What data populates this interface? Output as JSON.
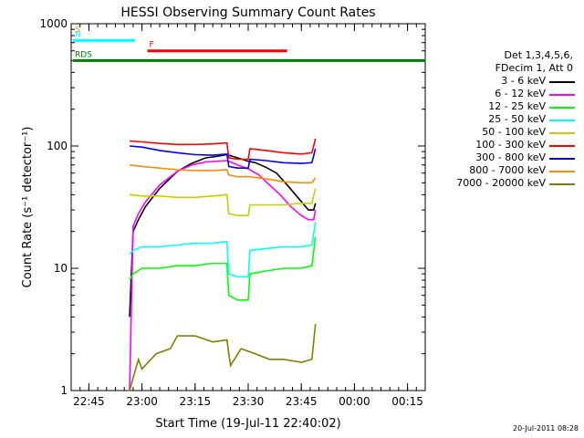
{
  "chart_data": {
    "type": "line",
    "title": "HESSI Observing Summary Count Rates",
    "xlabel": "Start Time (19-Jul-11 22:40:02)",
    "ylabel": "Count Rate (s⁻¹ detector⁻¹)",
    "yscale": "log",
    "ylim": [
      1,
      1000
    ],
    "xlim_min": [
      0,
      100
    ],
    "x_ticks": [
      {
        "t": 5,
        "label": "22:45"
      },
      {
        "t": 20,
        "label": "23:00"
      },
      {
        "t": 35,
        "label": "23:15"
      },
      {
        "t": 50,
        "label": "23:30"
      },
      {
        "t": 65,
        "label": "23:45"
      },
      {
        "t": 80,
        "label": "00:00"
      },
      {
        "t": 95,
        "label": "00:15"
      }
    ],
    "y_ticks": [
      {
        "v": 1,
        "label": "1"
      },
      {
        "v": 10,
        "label": "10"
      },
      {
        "v": 100,
        "label": "100"
      },
      {
        "v": 1000,
        "label": "1000"
      }
    ],
    "legend_header": [
      "Det 1,3,4,5,6,",
      "FDecim 1, Att 0"
    ],
    "series": [
      {
        "name": "3 - 6 keV",
        "color": "#000000",
        "points": [
          [
            16.5,
            4
          ],
          [
            17.5,
            20
          ],
          [
            19,
            25
          ],
          [
            21,
            32
          ],
          [
            25,
            45
          ],
          [
            30,
            62
          ],
          [
            34,
            72
          ],
          [
            38,
            80
          ],
          [
            41,
            82
          ],
          [
            44,
            85
          ],
          [
            47,
            80
          ],
          [
            50,
            75
          ],
          [
            52,
            73
          ],
          [
            55,
            67
          ],
          [
            58,
            60
          ],
          [
            61,
            48
          ],
          [
            64,
            38
          ],
          [
            67,
            30
          ],
          [
            68.5,
            30
          ],
          [
            69,
            34
          ]
        ]
      },
      {
        "name": "6 - 12 keV",
        "color": "#ff00ff",
        "points": [
          [
            16.5,
            1
          ],
          [
            17.5,
            22
          ],
          [
            19,
            28
          ],
          [
            21,
            35
          ],
          [
            25,
            48
          ],
          [
            30,
            62
          ],
          [
            34,
            70
          ],
          [
            38,
            74
          ],
          [
            41,
            75
          ],
          [
            44,
            76
          ],
          [
            47,
            70
          ],
          [
            50,
            65
          ],
          [
            53,
            58
          ],
          [
            56,
            48
          ],
          [
            59,
            40
          ],
          [
            62,
            32
          ],
          [
            65,
            27
          ],
          [
            67,
            25
          ],
          [
            68.5,
            25
          ],
          [
            69,
            30
          ]
        ]
      },
      {
        "name": "12 - 25 keV",
        "color": "#00ff00",
        "points": [
          [
            16.5,
            8
          ],
          [
            17.5,
            9
          ],
          [
            20,
            10
          ],
          [
            25,
            10
          ],
          [
            30,
            10.5
          ],
          [
            35,
            10.5
          ],
          [
            40,
            11
          ],
          [
            44,
            11
          ],
          [
            44.5,
            6
          ],
          [
            47,
            5.5
          ],
          [
            50,
            5.5
          ],
          [
            50.5,
            9
          ],
          [
            55,
            9.5
          ],
          [
            60,
            10
          ],
          [
            65,
            10
          ],
          [
            68,
            10.5
          ],
          [
            69,
            18
          ]
        ]
      },
      {
        "name": "25 - 50 keV",
        "color": "#00ffff",
        "points": [
          [
            16.5,
            13
          ],
          [
            17.5,
            14
          ],
          [
            20,
            15
          ],
          [
            25,
            15
          ],
          [
            30,
            15.5
          ],
          [
            35,
            16
          ],
          [
            40,
            16
          ],
          [
            44,
            16.5
          ],
          [
            44.5,
            9
          ],
          [
            47,
            8.5
          ],
          [
            50,
            8.5
          ],
          [
            50.5,
            14
          ],
          [
            55,
            14.5
          ],
          [
            60,
            15
          ],
          [
            65,
            15
          ],
          [
            68,
            15.5
          ],
          [
            69,
            24
          ]
        ]
      },
      {
        "name": "50 - 100 keV",
        "color": "#cccc00",
        "points": [
          [
            16.5,
            40
          ],
          [
            20,
            39
          ],
          [
            25,
            39
          ],
          [
            30,
            38
          ],
          [
            35,
            38
          ],
          [
            40,
            39
          ],
          [
            44,
            40
          ],
          [
            44.5,
            28
          ],
          [
            47,
            27
          ],
          [
            50,
            27
          ],
          [
            50.5,
            33
          ],
          [
            55,
            33
          ],
          [
            60,
            33
          ],
          [
            65,
            34
          ],
          [
            68,
            34
          ],
          [
            69,
            45
          ]
        ]
      },
      {
        "name": "100 - 300 keV",
        "color": "#ff0000",
        "points": [
          [
            16.5,
            110
          ],
          [
            20,
            108
          ],
          [
            25,
            105
          ],
          [
            30,
            103
          ],
          [
            35,
            103
          ],
          [
            40,
            104
          ],
          [
            44,
            106
          ],
          [
            44.5,
            80
          ],
          [
            47,
            78
          ],
          [
            50,
            78
          ],
          [
            50.5,
            95
          ],
          [
            55,
            92
          ],
          [
            60,
            88
          ],
          [
            65,
            86
          ],
          [
            68,
            88
          ],
          [
            69,
            115
          ]
        ]
      },
      {
        "name": "300 - 800 keV",
        "color": "#0000ff",
        "points": [
          [
            16.5,
            100
          ],
          [
            20,
            98
          ],
          [
            25,
            92
          ],
          [
            30,
            88
          ],
          [
            35,
            85
          ],
          [
            40,
            84
          ],
          [
            44,
            86
          ],
          [
            44.5,
            68
          ],
          [
            47,
            66
          ],
          [
            50,
            66
          ],
          [
            50.5,
            78
          ],
          [
            55,
            76
          ],
          [
            60,
            73
          ],
          [
            65,
            72
          ],
          [
            68,
            73
          ],
          [
            69,
            95
          ]
        ]
      },
      {
        "name": "800 - 7000 keV",
        "color": "#ff8c00",
        "points": [
          [
            16.5,
            70
          ],
          [
            20,
            68
          ],
          [
            25,
            66
          ],
          [
            30,
            64
          ],
          [
            35,
            63
          ],
          [
            40,
            63
          ],
          [
            44,
            64
          ],
          [
            44.5,
            58
          ],
          [
            47,
            56
          ],
          [
            50,
            56
          ],
          [
            50.5,
            56
          ],
          [
            55,
            54
          ],
          [
            60,
            51
          ],
          [
            65,
            50
          ],
          [
            68,
            50
          ],
          [
            69,
            55
          ]
        ]
      },
      {
        "name": "7000 - 20000 keV",
        "color": "#808000",
        "points": [
          [
            16.5,
            1
          ],
          [
            19,
            1.8
          ],
          [
            20,
            1.5
          ],
          [
            24,
            2
          ],
          [
            28,
            2.2
          ],
          [
            30,
            2.8
          ],
          [
            35,
            2.8
          ],
          [
            40,
            2.5
          ],
          [
            44,
            2.6
          ],
          [
            45,
            1.6
          ],
          [
            48,
            2.2
          ],
          [
            52,
            2
          ],
          [
            56,
            1.8
          ],
          [
            60,
            1.8
          ],
          [
            65,
            1.7
          ],
          [
            68,
            1.8
          ],
          [
            69,
            3.5
          ]
        ]
      }
    ],
    "flag_bars": [
      {
        "label": "S",
        "color": "#ff8c00",
        "x0": 0,
        "x1": 0,
        "y": 800
      },
      {
        "label": "N",
        "color": "#00ffff",
        "x0": 0,
        "x1": 18,
        "y": 730
      },
      {
        "label": "F",
        "color": "#ff0000",
        "x0": 21,
        "x1": 61,
        "y": 600
      },
      {
        "label": "RDS",
        "color": "#008000",
        "x0": 0,
        "x1": 100,
        "y": 500
      }
    ]
  }
}
